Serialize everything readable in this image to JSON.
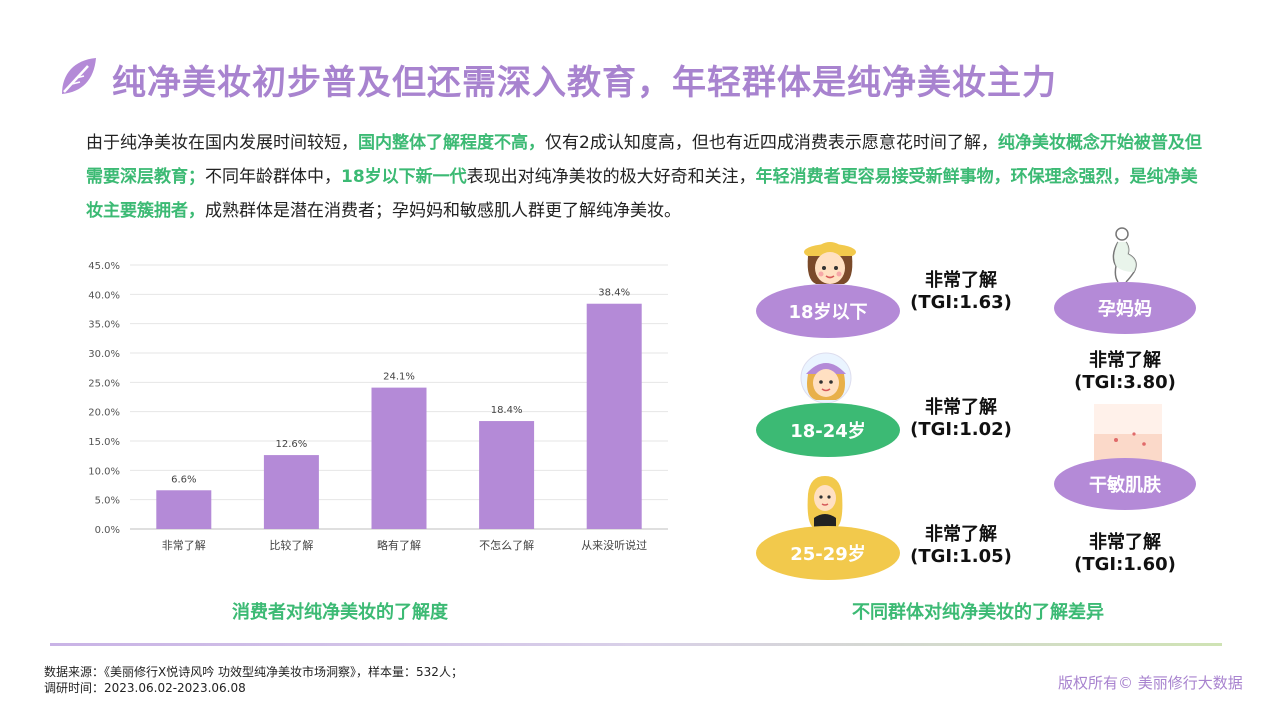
{
  "header": {
    "title": "纯净美妆初步普及但还需深入教育，年轻群体是纯净美妆主力"
  },
  "intro": {
    "segments": [
      {
        "text": "由于纯净美妆在国内发展时间较短，",
        "hl": false
      },
      {
        "text": "国内整体了解程度不高，",
        "hl": true
      },
      {
        "text": "仅有2成认知度高，但也有近四成消费表示愿意花时间了解，",
        "hl": false
      },
      {
        "text": "纯净美妆概念开始被普及但需要深层教育；",
        "hl": true
      },
      {
        "text": "不同年龄群体中，",
        "hl": false
      },
      {
        "text": "18岁以下新一代",
        "hl": true
      },
      {
        "text": "表现出对纯净美妆的极大好奇和关注，",
        "hl": false
      },
      {
        "text": "年轻消费者更容易接受新鲜事物，环保理念强烈，是纯净美妆主要簇拥者，",
        "hl": true
      },
      {
        "text": "成熟群体是潜在消费者；孕妈妈和敏感肌人群更了解纯净美妆。",
        "hl": false
      }
    ]
  },
  "chart_data": {
    "type": "bar",
    "categories": [
      "非常了解",
      "比较了解",
      "略有了解",
      "不怎么了解",
      "从来没听说过"
    ],
    "values": [
      6.6,
      12.6,
      24.1,
      18.4,
      38.4
    ],
    "data_labels": [
      "6.6%",
      "12.6%",
      "24.1%",
      "18.4%",
      "38.4%"
    ],
    "ylim": [
      0,
      45
    ],
    "yticks": [
      "0.0%",
      "5.0%",
      "10.0%",
      "15.0%",
      "20.0%",
      "25.0%",
      "30.0%",
      "35.0%",
      "40.0%",
      "45.0%"
    ],
    "grid": true,
    "bar_color": "#b48ad7",
    "caption": "消费者对纯净美妆的了解度"
  },
  "groups": {
    "caption": "不同群体对纯净美妆的了解差异",
    "items": [
      {
        "label": "18岁以下",
        "level": "非常了解",
        "tgi": "(TGI:1.63)",
        "color": "#b48ad7"
      },
      {
        "label": "18-24岁",
        "level": "非常了解",
        "tgi": "(TGI:1.02)",
        "color": "#3cba74"
      },
      {
        "label": "25-29岁",
        "level": "非常了解",
        "tgi": "(TGI:1.05)",
        "color": "#f2c94c"
      },
      {
        "label": "孕妈妈",
        "level": "非常了解",
        "tgi": "(TGI:3.80)",
        "color": "#b48ad7"
      },
      {
        "label": "干敏肌肤",
        "level": "非常了解",
        "tgi": "(TGI:1.60)",
        "color": "#b48ad7"
      }
    ]
  },
  "footer": {
    "source_line1": "数据来源：《美丽修行X悦诗风吟 功效型纯净美妆市场洞察》，样本量：532人；",
    "source_line2": "调研时间：2023.06.02-2023.06.08",
    "copyright": "版权所有© 美丽修行大数据"
  }
}
